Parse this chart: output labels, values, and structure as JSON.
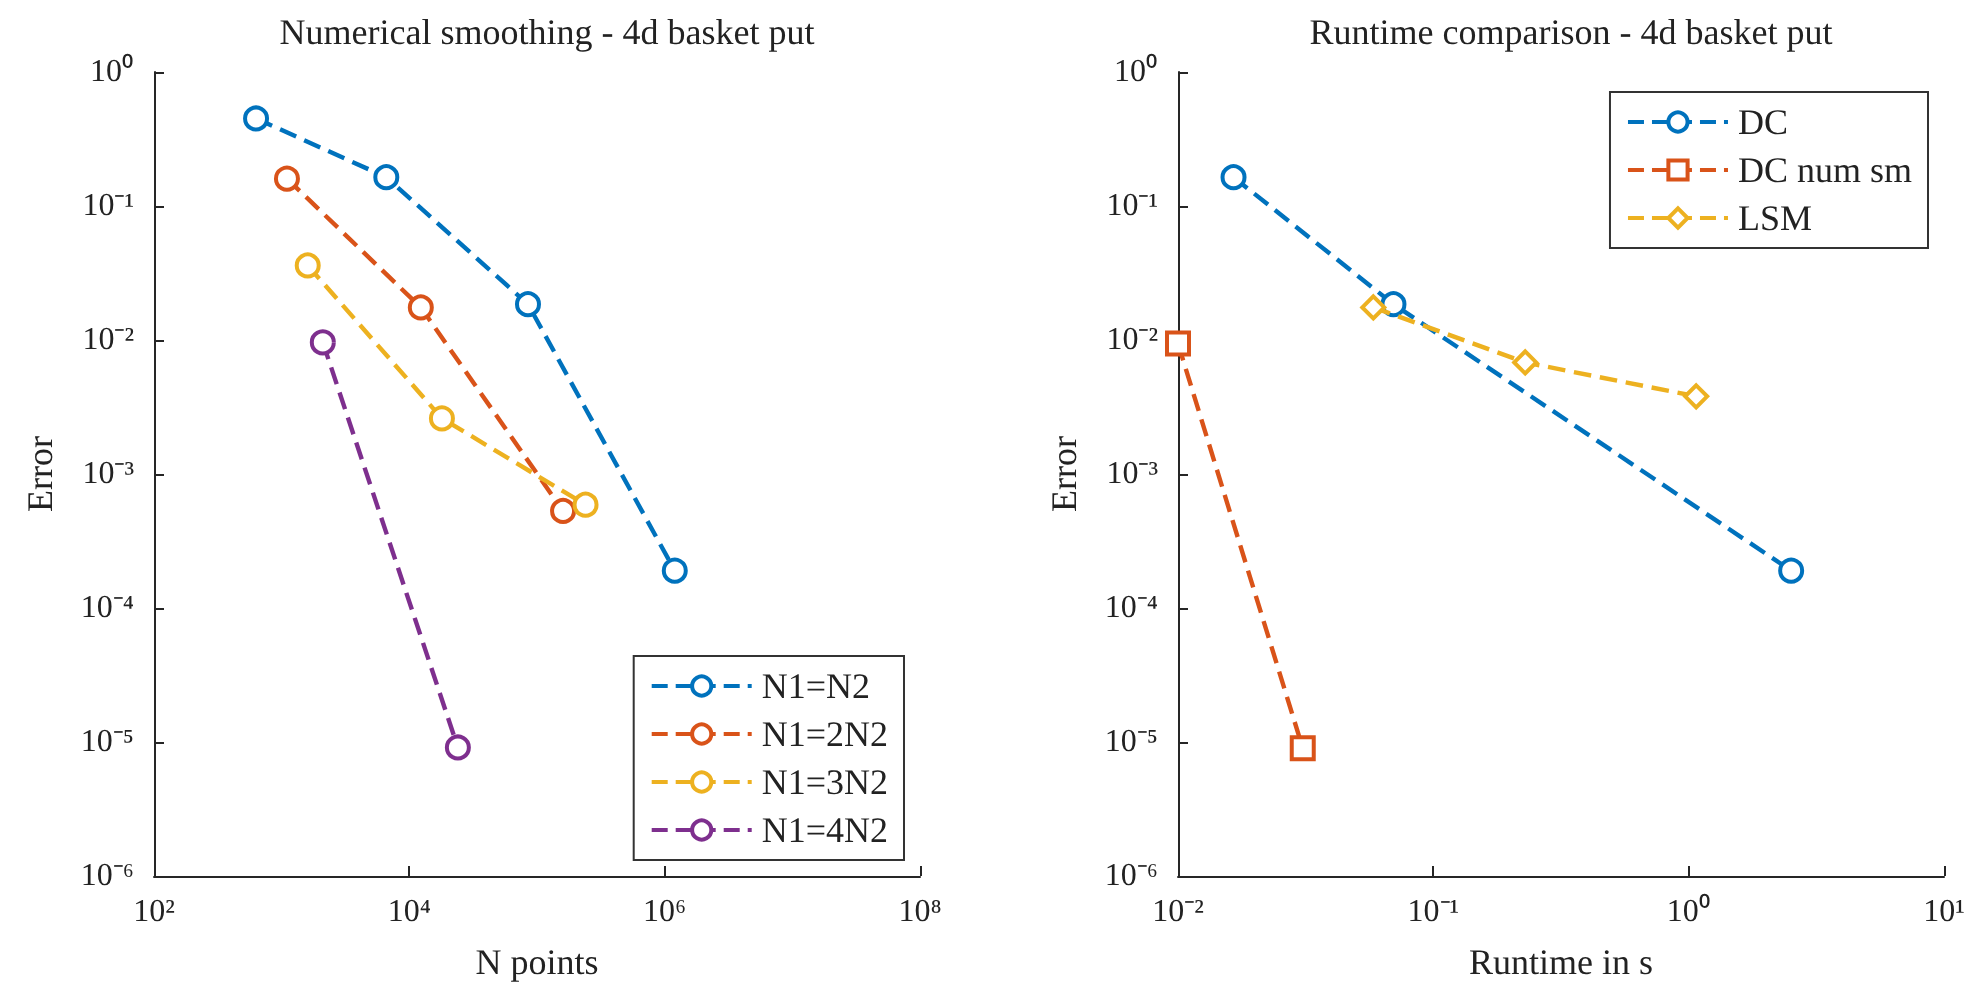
{
  "chart_data": [
    {
      "type": "line",
      "title": "Numerical smoothing - 4d basket put",
      "xlabel": "N points",
      "ylabel": "Error",
      "log": "xy",
      "grid": false,
      "legend": "bottom right",
      "line_style": "dashed",
      "marker": "circle",
      "xlim": [
        100,
        100000000
      ],
      "xticks": [
        {
          "value": 100,
          "label": "10²"
        },
        {
          "value": 10000,
          "label": "10⁴"
        },
        {
          "value": 1000000,
          "label": "10⁶"
        },
        {
          "value": 100000000,
          "label": "10⁸"
        }
      ],
      "ylim": [
        1e-06,
        1
      ],
      "yticks": [
        {
          "value": 1e-06,
          "label": "10⁻⁶"
        },
        {
          "value": 1e-05,
          "label": "10⁻⁵"
        },
        {
          "value": 0.0001,
          "label": "10⁻⁴"
        },
        {
          "value": 0.001,
          "label": "10⁻³"
        },
        {
          "value": 0.01,
          "label": "10⁻²"
        },
        {
          "value": 0.1,
          "label": "10⁻¹"
        },
        {
          "value": 1,
          "label": "10⁰"
        }
      ],
      "series": [
        {
          "name": "N1=N2",
          "color": "#0072bd",
          "x": [
            630,
            6600,
            85000,
            1200000
          ],
          "values": [
            0.45,
            0.164,
            0.0185,
            0.00019
          ]
        },
        {
          "name": "N1=2N2",
          "color": "#d95319",
          "x": [
            1100,
            12300,
            160000
          ],
          "values": [
            0.16,
            0.0175,
            0.00053
          ]
        },
        {
          "name": "N1=3N2",
          "color": "#edb120",
          "x": [
            1600,
            18000,
            240000
          ],
          "values": [
            0.036,
            0.0026,
            0.00059
          ]
        },
        {
          "name": "N1=4N2",
          "color": "#7e2f8e",
          "x": [
            2100,
            24000
          ],
          "values": [
            0.0096,
            9.1e-06
          ]
        }
      ]
    },
    {
      "type": "line",
      "title": "Runtime comparison - 4d basket put",
      "xlabel": "Runtime in s",
      "ylabel": "Error",
      "log": "xy",
      "grid": false,
      "legend": "top right",
      "line_style": "dashed",
      "xlim": [
        0.01,
        10
      ],
      "xticks": [
        {
          "value": 0.01,
          "label": "10⁻²"
        },
        {
          "value": 0.1,
          "label": "10⁻¹"
        },
        {
          "value": 1,
          "label": "10⁰"
        },
        {
          "value": 10,
          "label": "10¹"
        }
      ],
      "ylim": [
        1e-06,
        1
      ],
      "yticks": [
        {
          "value": 1e-06,
          "label": "10⁻⁶"
        },
        {
          "value": 1e-05,
          "label": "10⁻⁵"
        },
        {
          "value": 0.0001,
          "label": "10⁻⁴"
        },
        {
          "value": 0.001,
          "label": "10⁻³"
        },
        {
          "value": 0.01,
          "label": "10⁻²"
        },
        {
          "value": 0.1,
          "label": "10⁻¹"
        },
        {
          "value": 1,
          "label": "10⁰"
        }
      ],
      "series": [
        {
          "name": "DC",
          "color": "#0072bd",
          "marker": "circle",
          "x": [
            0.0165,
            0.0698,
            2.52
          ],
          "values": [
            0.164,
            0.0185,
            0.00019
          ]
        },
        {
          "name": "DC num sm",
          "color": "#d95319",
          "marker": "square",
          "x": [
            0.01,
            0.0308
          ],
          "values": [
            0.0094,
            9e-06
          ]
        },
        {
          "name": "LSM",
          "color": "#edb120",
          "marker": "diamond",
          "x": [
            0.0582,
            0.229,
            1.07
          ],
          "values": [
            0.0175,
            0.0068,
            0.0038
          ]
        }
      ]
    }
  ]
}
